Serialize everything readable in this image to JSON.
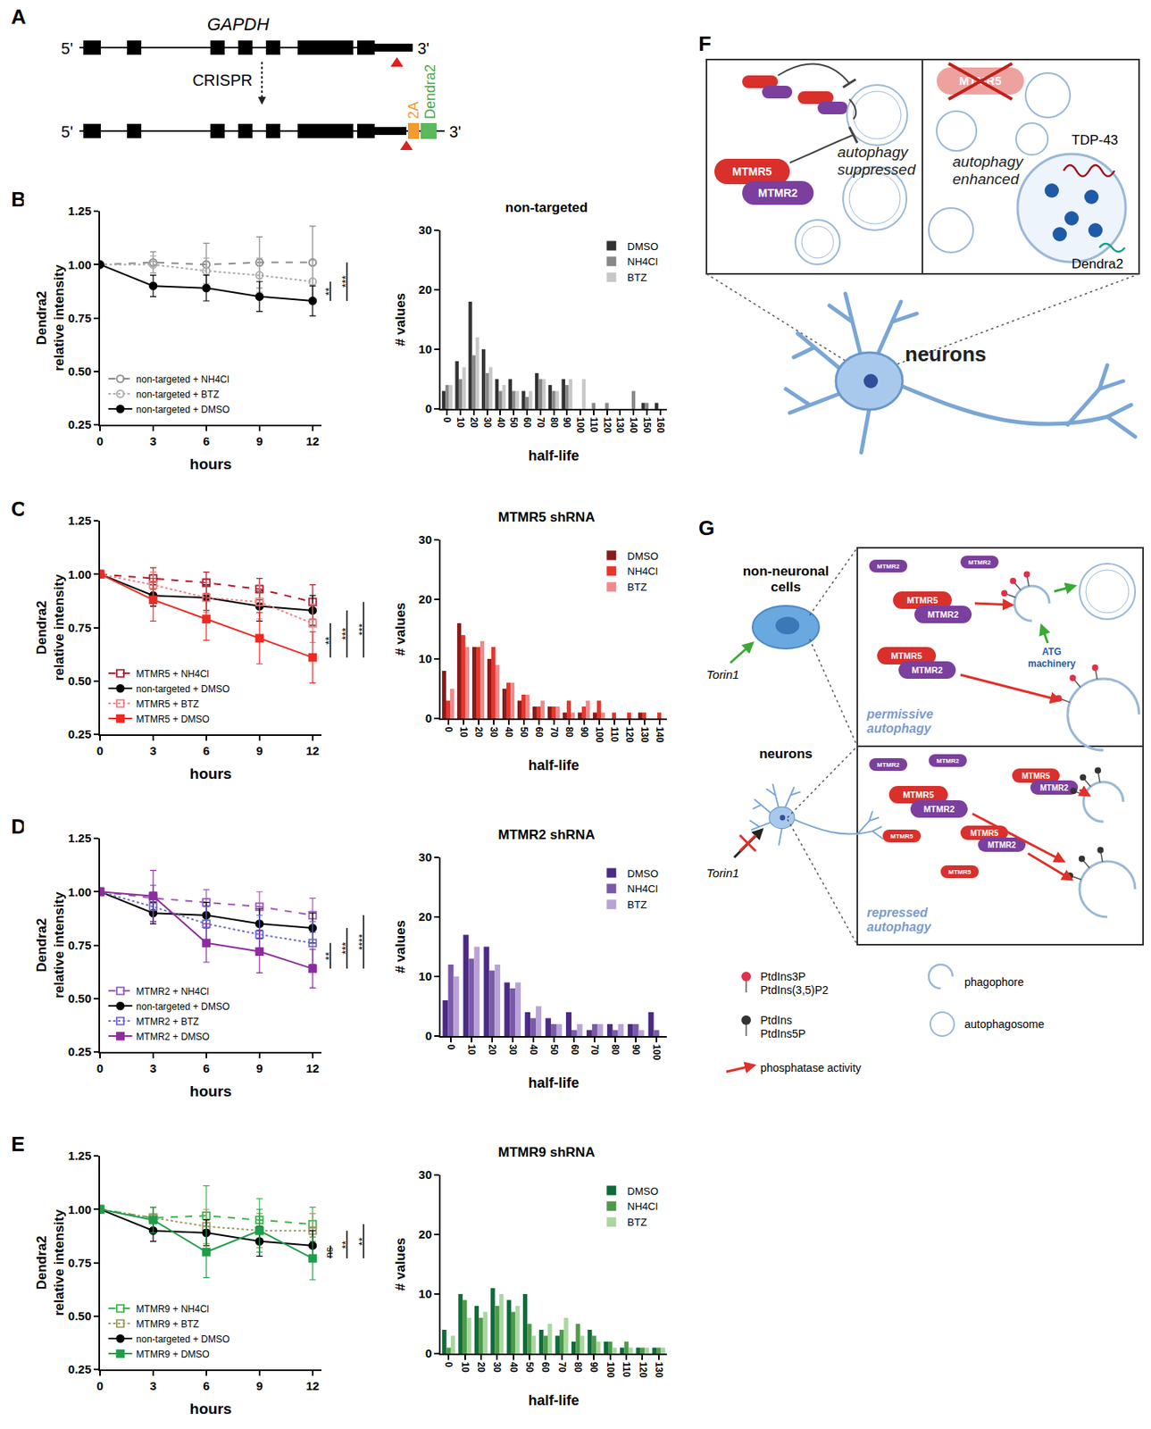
{
  "panel_labels": [
    "A",
    "B",
    "C",
    "D",
    "E",
    "F",
    "G"
  ],
  "panel_a": {
    "gene": "GAPDH",
    "end5": "5'",
    "end3": "3'",
    "method": "CRISPR",
    "linker": "2A",
    "tag": "Dendra2"
  },
  "panel_f": {
    "mtmr5": "MTMR5",
    "mtmr2": "MTMR2",
    "suppressed": [
      "autophagy",
      "suppressed"
    ],
    "enhanced": [
      "autophagy",
      "enhanced"
    ],
    "tdp43": "TDP-43",
    "dendra2": "Dendra2",
    "neurons": "neurons"
  },
  "panel_g": {
    "cells": [
      "non-neuronal",
      "cells"
    ],
    "neurons": "neurons",
    "drug": "Torin1",
    "mtmr5": "MTMR5",
    "mtmr2": "MTMR2",
    "atg": [
      "ATG",
      "machinery"
    ],
    "permissive": [
      "permissive",
      "autophagy"
    ],
    "repressed": [
      "repressed",
      "autophagy"
    ],
    "lipid_on": [
      "PtdIns3P",
      "PtdIns(3,5)P2"
    ],
    "lipid_off": [
      "PtdIns",
      "PtdIns5P"
    ],
    "phagophore": "phagophore",
    "autophagosome": "autophagosome",
    "phosphatase": "phosphatase activity"
  },
  "chart_data": [
    {
      "type": "line",
      "xlabel": "hours",
      "ylabel": [
        "Dendra2",
        "relative intensity"
      ],
      "x": [
        0,
        3,
        6,
        9,
        12
      ],
      "xlim": [
        0,
        12.5
      ],
      "xticks": [
        0,
        3,
        6,
        9,
        12
      ],
      "ylim": [
        0.25,
        1.25
      ],
      "yticks": [
        {
          "value": 0.25,
          "label": "0.25"
        },
        {
          "value": 0.5,
          "label": "0.50"
        },
        {
          "value": 0.75,
          "label": "0.75"
        },
        {
          "value": 1,
          "label": "1.00"
        },
        {
          "value": 1.25,
          "label": "1.25"
        }
      ],
      "grid": false,
      "legend": "lower left",
      "series": [
        {
          "name": "non-targeted + NH4Cl",
          "color": "#8a8a8a",
          "marker": "circle-open",
          "line_style": "dash",
          "values": [
            1.0,
            1.01,
            1.0,
            1.01,
            1.01
          ],
          "error": [
            0,
            0.05,
            0.1,
            0.12,
            0.17
          ]
        },
        {
          "name": "non-targeted + BTZ",
          "color": "#aaaaaa",
          "marker": "circle-open",
          "line_style": "dot",
          "values": [
            1.0,
            1.0,
            0.97,
            0.95,
            0.92
          ],
          "error": [
            0,
            0.04,
            0.06,
            0.08,
            0.1
          ]
        },
        {
          "name": "non-targeted + DMSO",
          "color": "#000000",
          "marker": "circle",
          "line_style": "solid",
          "values": [
            1.0,
            0.9,
            0.89,
            0.85,
            0.83
          ],
          "error": [
            0,
            0.05,
            0.06,
            0.07,
            0.07
          ]
        }
      ],
      "annotations": [
        {
          "text": "**",
          "between": [
            "non-targeted + BTZ",
            "non-targeted + DMSO"
          ]
        },
        {
          "text": "***",
          "between": [
            "non-targeted + NH4Cl",
            "non-targeted + DMSO"
          ]
        }
      ]
    },
    {
      "type": "bar",
      "title": "non-targeted",
      "xlabel": "half-life",
      "ylabel": "# values",
      "categories": [
        "0",
        "10",
        "20",
        "30",
        "40",
        "50",
        "60",
        "70",
        "80",
        "90",
        "100",
        "110",
        "120",
        "130",
        "140",
        "150",
        "160"
      ],
      "ylim": [
        0,
        30
      ],
      "yticks": [
        0,
        10,
        20,
        30
      ],
      "grid": false,
      "legend": "upper right",
      "series": [
        {
          "name": "DMSO",
          "color": "#333333",
          "values": [
            3,
            8,
            18,
            10,
            5,
            5,
            3,
            6,
            4,
            5,
            0,
            0,
            0,
            0,
            0,
            1,
            1
          ]
        },
        {
          "name": "NH4Cl",
          "color": "#888888",
          "values": [
            4,
            5,
            9,
            6,
            3,
            3,
            2,
            5,
            3,
            4,
            0,
            1,
            1,
            0,
            3,
            1,
            0
          ]
        },
        {
          "name": "BTZ",
          "color": "#c8c8c8",
          "values": [
            4,
            7,
            12,
            7,
            4,
            3,
            3,
            5,
            3,
            5,
            5,
            0,
            0,
            0,
            0,
            0,
            0
          ]
        }
      ]
    },
    {
      "type": "line",
      "xlabel": "hours",
      "ylabel": [
        "Dendra2",
        "relative intensity"
      ],
      "x": [
        0,
        3,
        6,
        9,
        12
      ],
      "xlim": [
        0,
        12.5
      ],
      "xticks": [
        0,
        3,
        6,
        9,
        12
      ],
      "ylim": [
        0.25,
        1.25
      ],
      "yticks": [
        {
          "value": 0.25,
          "label": "0.25"
        },
        {
          "value": 0.5,
          "label": "0.50"
        },
        {
          "value": 0.75,
          "label": "0.75"
        },
        {
          "value": 1,
          "label": "1.00"
        },
        {
          "value": 1.25,
          "label": "1.25"
        }
      ],
      "grid": false,
      "legend": "lower left",
      "series": [
        {
          "name": "MTMR5 + NH4Cl",
          "color": "#b2182b",
          "marker": "square-open",
          "line_style": "dash",
          "values": [
            1.0,
            0.98,
            0.96,
            0.93,
            0.87
          ],
          "error": [
            0,
            0.05,
            0.05,
            0.05,
            0.08
          ]
        },
        {
          "name": "non-targeted + DMSO",
          "color": "#000000",
          "marker": "circle",
          "line_style": "solid",
          "values": [
            1.0,
            0.9,
            0.89,
            0.85,
            0.83
          ],
          "error": [
            0,
            0.05,
            0.06,
            0.07,
            0.07
          ]
        },
        {
          "name": "MTMR5 + BTZ",
          "color": "#f08080",
          "marker": "square-open",
          "line_style": "dot",
          "values": [
            1.0,
            0.95,
            0.89,
            0.87,
            0.77
          ],
          "error": [
            0,
            0.06,
            0.07,
            0.08,
            0.09
          ]
        },
        {
          "name": "MTMR5 + DMSO",
          "color": "#ee2a24",
          "marker": "square",
          "line_style": "solid",
          "values": [
            1.0,
            0.88,
            0.79,
            0.7,
            0.61
          ],
          "error": [
            0,
            0.1,
            0.1,
            0.12,
            0.12
          ]
        }
      ],
      "annotations": [
        {
          "text": "**",
          "between": [
            "MTMR5 + BTZ",
            "MTMR5 + DMSO"
          ]
        },
        {
          "text": "***",
          "between": [
            "non-targeted + DMSO",
            "MTMR5 + DMSO"
          ]
        },
        {
          "text": "***",
          "between": [
            "MTMR5 + NH4Cl",
            "MTMR5 + DMSO"
          ]
        }
      ]
    },
    {
      "type": "bar",
      "title": "MTMR5 shRNA",
      "xlabel": "half-life",
      "ylabel": "# values",
      "categories": [
        "0",
        "10",
        "20",
        "30",
        "40",
        "50",
        "60",
        "70",
        "80",
        "90",
        "100",
        "110",
        "120",
        "130",
        "140"
      ],
      "ylim": [
        0,
        30
      ],
      "yticks": [
        0,
        10,
        20,
        30
      ],
      "grid": false,
      "legend": "upper right",
      "series": [
        {
          "name": "DMSO",
          "color": "#8b1a1a",
          "values": [
            8,
            16,
            12,
            10,
            5,
            3,
            2,
            2,
            1,
            1,
            1,
            0,
            0,
            1,
            0
          ]
        },
        {
          "name": "NH4Cl",
          "color": "#e8352b",
          "values": [
            3,
            14,
            12,
            12,
            6,
            4,
            2,
            2,
            3,
            2,
            3,
            1,
            1,
            1,
            1
          ]
        },
        {
          "name": "BTZ",
          "color": "#f08a8a",
          "values": [
            5,
            12,
            13,
            9,
            6,
            4,
            3,
            2,
            1,
            3,
            1,
            0,
            0,
            0,
            0
          ]
        }
      ]
    },
    {
      "type": "line",
      "xlabel": "hours",
      "ylabel": [
        "Dendra2",
        "relative intensity"
      ],
      "x": [
        0,
        3,
        6,
        9,
        12
      ],
      "xlim": [
        0,
        12.5
      ],
      "xticks": [
        0,
        3,
        6,
        9,
        12
      ],
      "ylim": [
        0.25,
        1.25
      ],
      "yticks": [
        {
          "value": 0.25,
          "label": "0.25"
        },
        {
          "value": 0.5,
          "label": "0.50"
        },
        {
          "value": 0.75,
          "label": "0.75"
        },
        {
          "value": 1,
          "label": "1.00"
        },
        {
          "value": 1.25,
          "label": "1.25"
        }
      ],
      "grid": false,
      "legend": "lower left",
      "series": [
        {
          "name": "MTMR2 + NH4Cl",
          "color": "#9b59b6",
          "marker": "square-open",
          "line_style": "dash",
          "values": [
            1.0,
            0.97,
            0.95,
            0.93,
            0.89
          ],
          "error": [
            0,
            0.06,
            0.06,
            0.07,
            0.08
          ]
        },
        {
          "name": "non-targeted + DMSO",
          "color": "#000000",
          "marker": "circle",
          "line_style": "solid",
          "values": [
            1.0,
            0.9,
            0.89,
            0.85,
            0.83
          ],
          "error": [
            0,
            0.05,
            0.06,
            0.07,
            0.07
          ]
        },
        {
          "name": "MTMR2 + BTZ",
          "color": "#6a6ad0",
          "marker": "square-open",
          "line_style": "dot",
          "values": [
            1.0,
            0.93,
            0.85,
            0.8,
            0.76
          ],
          "error": [
            0,
            0.07,
            0.08,
            0.09,
            0.1
          ]
        },
        {
          "name": "MTMR2 + DMSO",
          "color": "#8e2c9e",
          "marker": "square",
          "line_style": "solid",
          "values": [
            1.0,
            0.98,
            0.76,
            0.72,
            0.64
          ],
          "error": [
            0,
            0.12,
            0.09,
            0.1,
            0.09
          ]
        }
      ],
      "annotations": [
        {
          "text": "**",
          "between": [
            "MTMR2 + BTZ",
            "MTMR2 + DMSO"
          ]
        },
        {
          "text": "***",
          "between": [
            "non-targeted + DMSO",
            "MTMR2 + DMSO"
          ]
        },
        {
          "text": "****",
          "between": [
            "MTMR2 + NH4Cl",
            "MTMR2 + DMSO"
          ]
        }
      ]
    },
    {
      "type": "bar",
      "title": "MTMR2 shRNA",
      "xlabel": "half-life",
      "ylabel": "# values",
      "categories": [
        "0",
        "10",
        "20",
        "30",
        "40",
        "50",
        "60",
        "70",
        "80",
        "90",
        "100"
      ],
      "ylim": [
        0,
        30
      ],
      "yticks": [
        0,
        10,
        20,
        30
      ],
      "grid": false,
      "legend": "upper right",
      "series": [
        {
          "name": "DMSO",
          "color": "#4b2a86",
          "values": [
            6,
            17,
            15,
            9,
            4,
            3,
            4,
            1,
            2,
            2,
            4
          ]
        },
        {
          "name": "NH4Cl",
          "color": "#7a5aa8",
          "values": [
            12,
            13,
            11,
            8,
            3,
            2,
            1,
            2,
            1,
            2,
            1
          ]
        },
        {
          "name": "BTZ",
          "color": "#b9a2d6",
          "values": [
            10,
            15,
            12,
            9,
            5,
            2,
            2,
            2,
            2,
            1,
            0
          ]
        }
      ]
    },
    {
      "type": "line",
      "xlabel": "hours",
      "ylabel": [
        "Dendra2",
        "relative intensity"
      ],
      "x": [
        0,
        3,
        6,
        9,
        12
      ],
      "xlim": [
        0,
        12.5
      ],
      "xticks": [
        0,
        3,
        6,
        9,
        12
      ],
      "ylim": [
        0.25,
        1.25
      ],
      "yticks": [
        {
          "value": 0.25,
          "label": "0.25"
        },
        {
          "value": 0.5,
          "label": "0.50"
        },
        {
          "value": 0.75,
          "label": "0.75"
        },
        {
          "value": 1,
          "label": "1.00"
        },
        {
          "value": 1.25,
          "label": "1.25"
        }
      ],
      "grid": false,
      "legend": "lower left",
      "series": [
        {
          "name": "MTMR9 + NH4Cl",
          "color": "#3cb44b",
          "marker": "square-open",
          "line_style": "dash",
          "values": [
            1.0,
            0.96,
            0.97,
            0.95,
            0.93
          ],
          "error": [
            0,
            0.05,
            0.14,
            0.1,
            0.08
          ]
        },
        {
          "name": "MTMR9 + BTZ",
          "color": "#a09a60",
          "marker": "square-open",
          "line_style": "dot",
          "values": [
            1.0,
            0.96,
            0.92,
            0.9,
            0.9
          ],
          "error": [
            0,
            0.05,
            0.08,
            0.08,
            0.08
          ]
        },
        {
          "name": "non-targeted + DMSO",
          "color": "#000000",
          "marker": "circle",
          "line_style": "solid",
          "values": [
            1.0,
            0.9,
            0.89,
            0.85,
            0.83
          ],
          "error": [
            0,
            0.05,
            0.06,
            0.07,
            0.07
          ]
        },
        {
          "name": "MTMR9 + DMSO",
          "color": "#1e9e4a",
          "marker": "square",
          "line_style": "solid",
          "values": [
            1.0,
            0.95,
            0.8,
            0.9,
            0.77
          ],
          "error": [
            0,
            0.06,
            0.12,
            0.1,
            0.1
          ]
        }
      ],
      "annotations": [
        {
          "text": "ns",
          "between": [
            "non-targeted + DMSO",
            "MTMR9 + DMSO"
          ]
        },
        {
          "text": "**",
          "between": [
            "MTMR9 + BTZ",
            "MTMR9 + DMSO"
          ]
        },
        {
          "text": "**",
          "between": [
            "MTMR9 + NH4Cl",
            "MTMR9 + DMSO"
          ]
        }
      ]
    },
    {
      "type": "bar",
      "title": "MTMR9 shRNA",
      "xlabel": "half-life",
      "ylabel": "# values",
      "categories": [
        "0",
        "10",
        "20",
        "30",
        "40",
        "50",
        "60",
        "70",
        "80",
        "90",
        "100",
        "110",
        "120",
        "130"
      ],
      "ylim": [
        0,
        30
      ],
      "yticks": [
        0,
        10,
        20,
        30
      ],
      "grid": false,
      "legend": "upper right",
      "series": [
        {
          "name": "DMSO",
          "color": "#0d6b3a",
          "values": [
            4,
            10,
            8,
            11,
            9,
            10,
            4,
            3,
            2,
            4,
            2,
            1,
            1,
            1
          ]
        },
        {
          "name": "NH4Cl",
          "color": "#4f9a4a",
          "values": [
            1,
            9,
            6,
            8,
            7,
            5,
            3,
            4,
            5,
            3,
            2,
            2,
            1,
            1
          ]
        },
        {
          "name": "BTZ",
          "color": "#a8d8a0",
          "values": [
            3,
            6,
            7,
            10,
            8,
            3,
            5,
            6,
            3,
            2,
            1,
            1,
            1,
            1
          ]
        }
      ]
    }
  ]
}
